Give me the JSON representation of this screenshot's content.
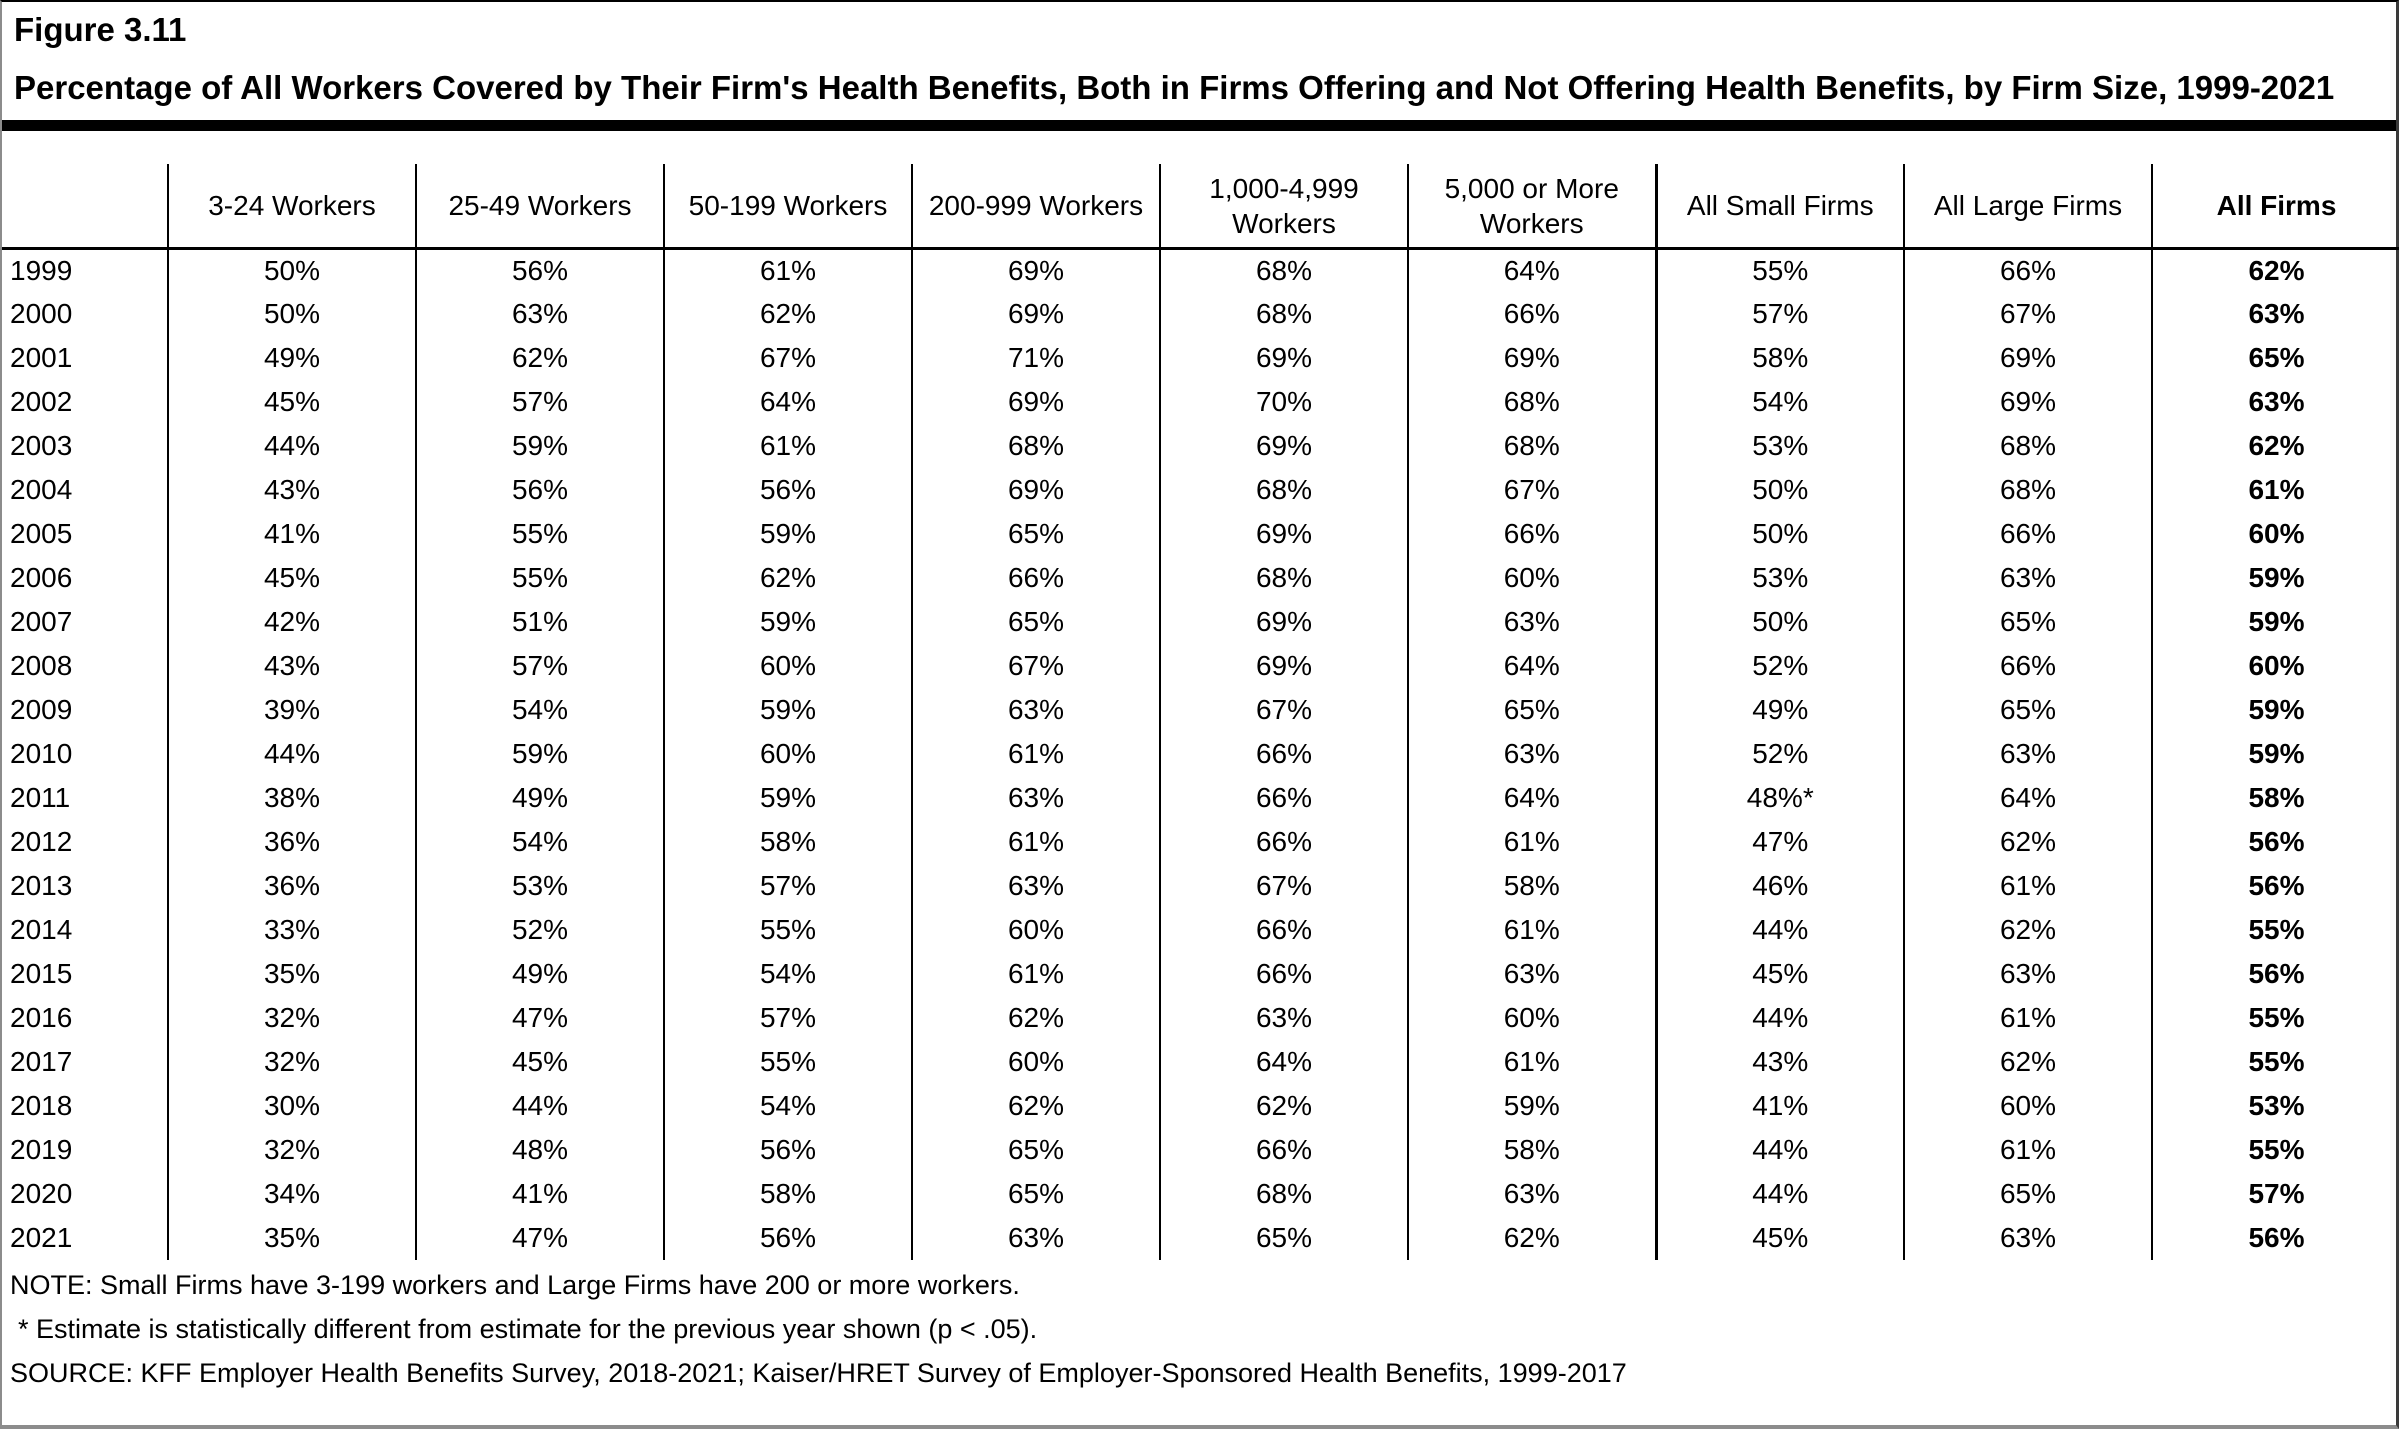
{
  "figure": {
    "label": "Figure 3.11",
    "title": "Percentage of All Workers Covered by Their Firm's Health Benefits, Both in Firms Offering and Not Offering Health Benefits, by Firm Size, 1999-2021"
  },
  "chart_data": {
    "type": "table",
    "title": "Percentage of All Workers Covered by Their Firm's Health Benefits, Both in Firms Offering and Not Offering Health Benefits, by Firm Size, 1999-2021",
    "columns": [
      "",
      "3-24 Workers",
      "25-49 Workers",
      "50-199 Workers",
      "200-999 Workers",
      "1,000-4,999 Workers",
      "5,000 or More Workers",
      "All Small Firms",
      "All Large Firms",
      "All Firms"
    ],
    "rows": [
      [
        "1999",
        "50%",
        "56%",
        "61%",
        "69%",
        "68%",
        "64%",
        "55%",
        "66%",
        "62%"
      ],
      [
        "2000",
        "50%",
        "63%",
        "62%",
        "69%",
        "68%",
        "66%",
        "57%",
        "67%",
        "63%"
      ],
      [
        "2001",
        "49%",
        "62%",
        "67%",
        "71%",
        "69%",
        "69%",
        "58%",
        "69%",
        "65%"
      ],
      [
        "2002",
        "45%",
        "57%",
        "64%",
        "69%",
        "70%",
        "68%",
        "54%",
        "69%",
        "63%"
      ],
      [
        "2003",
        "44%",
        "59%",
        "61%",
        "68%",
        "69%",
        "68%",
        "53%",
        "68%",
        "62%"
      ],
      [
        "2004",
        "43%",
        "56%",
        "56%",
        "69%",
        "68%",
        "67%",
        "50%",
        "68%",
        "61%"
      ],
      [
        "2005",
        "41%",
        "55%",
        "59%",
        "65%",
        "69%",
        "66%",
        "50%",
        "66%",
        "60%"
      ],
      [
        "2006",
        "45%",
        "55%",
        "62%",
        "66%",
        "68%",
        "60%",
        "53%",
        "63%",
        "59%"
      ],
      [
        "2007",
        "42%",
        "51%",
        "59%",
        "65%",
        "69%",
        "63%",
        "50%",
        "65%",
        "59%"
      ],
      [
        "2008",
        "43%",
        "57%",
        "60%",
        "67%",
        "69%",
        "64%",
        "52%",
        "66%",
        "60%"
      ],
      [
        "2009",
        "39%",
        "54%",
        "59%",
        "63%",
        "67%",
        "65%",
        "49%",
        "65%",
        "59%"
      ],
      [
        "2010",
        "44%",
        "59%",
        "60%",
        "61%",
        "66%",
        "63%",
        "52%",
        "63%",
        "59%"
      ],
      [
        "2011",
        "38%",
        "49%",
        "59%",
        "63%",
        "66%",
        "64%",
        "48%*",
        "64%",
        "58%"
      ],
      [
        "2012",
        "36%",
        "54%",
        "58%",
        "61%",
        "66%",
        "61%",
        "47%",
        "62%",
        "56%"
      ],
      [
        "2013",
        "36%",
        "53%",
        "57%",
        "63%",
        "67%",
        "58%",
        "46%",
        "61%",
        "56%"
      ],
      [
        "2014",
        "33%",
        "52%",
        "55%",
        "60%",
        "66%",
        "61%",
        "44%",
        "62%",
        "55%"
      ],
      [
        "2015",
        "35%",
        "49%",
        "54%",
        "61%",
        "66%",
        "63%",
        "45%",
        "63%",
        "56%"
      ],
      [
        "2016",
        "32%",
        "47%",
        "57%",
        "62%",
        "63%",
        "60%",
        "44%",
        "61%",
        "55%"
      ],
      [
        "2017",
        "32%",
        "45%",
        "55%",
        "60%",
        "64%",
        "61%",
        "43%",
        "62%",
        "55%"
      ],
      [
        "2018",
        "30%",
        "44%",
        "54%",
        "62%",
        "62%",
        "59%",
        "41%",
        "60%",
        "53%"
      ],
      [
        "2019",
        "32%",
        "48%",
        "56%",
        "65%",
        "66%",
        "58%",
        "44%",
        "61%",
        "55%"
      ],
      [
        "2020",
        "34%",
        "41%",
        "58%",
        "65%",
        "68%",
        "63%",
        "44%",
        "65%",
        "57%"
      ],
      [
        "2021",
        "35%",
        "47%",
        "56%",
        "63%",
        "65%",
        "62%",
        "45%",
        "63%",
        "56%"
      ]
    ],
    "layout": {
      "group_separator_after_column": 6,
      "bold_column": "All Firms",
      "grid": "vertical-lines-only"
    }
  },
  "notes": {
    "note": "NOTE: Small Firms have 3-199 workers and Large Firms have 200 or more workers.",
    "asterisk": "* Estimate is statistically different from estimate for the previous year shown (p < .05).",
    "source": "SOURCE: KFF Employer Health Benefits Survey, 2018-2021; Kaiser/HRET Survey of Employer-Sponsored Health Benefits, 1999-2017"
  }
}
